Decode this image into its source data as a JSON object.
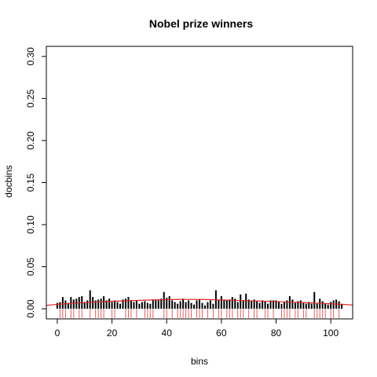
{
  "chart_data": {
    "type": "bar",
    "title": "Nobel prize winners",
    "xlabel": "bins",
    "ylabel": "docbins",
    "xlim": [
      -4,
      108
    ],
    "ylim": [
      -0.012,
      0.312
    ],
    "grid": false,
    "x_ticks": [
      0,
      20,
      40,
      60,
      80,
      100
    ],
    "x_tick_labels": [
      "0",
      "20",
      "40",
      "60",
      "80",
      "100"
    ],
    "y_ticks": [
      0.0,
      0.05,
      0.1,
      0.15,
      0.2,
      0.25,
      0.3
    ],
    "y_tick_labels": [
      "0.00",
      "0.05",
      "0.10",
      "0.15",
      "0.20",
      "0.25",
      "0.30"
    ],
    "bar_color": "#000000",
    "x": [
      0,
      1,
      2,
      3,
      4,
      5,
      6,
      7,
      8,
      9,
      10,
      11,
      12,
      13,
      14,
      15,
      16,
      17,
      18,
      19,
      20,
      21,
      22,
      23,
      24,
      25,
      26,
      27,
      28,
      29,
      30,
      31,
      32,
      33,
      34,
      35,
      36,
      37,
      38,
      39,
      40,
      41,
      42,
      43,
      44,
      45,
      46,
      47,
      48,
      49,
      50,
      51,
      52,
      53,
      54,
      55,
      56,
      57,
      58,
      59,
      60,
      61,
      62,
      63,
      64,
      65,
      66,
      67,
      68,
      69,
      70,
      71,
      72,
      73,
      74,
      75,
      76,
      77,
      78,
      79,
      80,
      81,
      82,
      83,
      84,
      85,
      86,
      87,
      88,
      89,
      90,
      91,
      92,
      93,
      94,
      95,
      96,
      97,
      98,
      99,
      100,
      101,
      102,
      103,
      104
    ],
    "values": [
      0.007,
      0.008,
      0.014,
      0.01,
      0.007,
      0.014,
      0.011,
      0.012,
      0.014,
      0.015,
      0.008,
      0.01,
      0.022,
      0.014,
      0.01,
      0.011,
      0.012,
      0.015,
      0.01,
      0.012,
      0.008,
      0.01,
      0.008,
      0.006,
      0.011,
      0.012,
      0.014,
      0.01,
      0.008,
      0.01,
      0.006,
      0.008,
      0.009,
      0.007,
      0.006,
      0.011,
      0.01,
      0.01,
      0.012,
      0.02,
      0.013,
      0.015,
      0.01,
      0.008,
      0.006,
      0.009,
      0.012,
      0.008,
      0.01,
      0.007,
      0.005,
      0.01,
      0.011,
      0.007,
      0.004,
      0.008,
      0.01,
      0.006,
      0.022,
      0.01,
      0.015,
      0.011,
      0.01,
      0.011,
      0.014,
      0.012,
      0.008,
      0.017,
      0.01,
      0.018,
      0.011,
      0.01,
      0.011,
      0.009,
      0.007,
      0.01,
      0.009,
      0.006,
      0.01,
      0.01,
      0.01,
      0.009,
      0.006,
      0.008,
      0.01,
      0.015,
      0.011,
      0.007,
      0.009,
      0.01,
      0.007,
      0.006,
      0.008,
      0.006,
      0.02,
      0.006,
      0.012,
      0.009,
      0.006,
      0.005,
      0.008,
      0.01,
      0.011,
      0.009,
      0.006
    ],
    "density_curve": {
      "color": "#d62728",
      "x": [
        -4,
        0,
        10,
        20,
        30,
        40,
        48,
        55,
        60,
        70,
        80,
        90,
        100,
        108
      ],
      "y": [
        0.004,
        0.0055,
        0.0075,
        0.009,
        0.01,
        0.011,
        0.0112,
        0.011,
        0.0105,
        0.0095,
        0.0085,
        0.0075,
        0.006,
        0.0045
      ]
    },
    "rug": {
      "color": "#e06060",
      "x": [
        1,
        2,
        3,
        5,
        6,
        8,
        9,
        12,
        14,
        15,
        16,
        17,
        20,
        21,
        25,
        26,
        27,
        29,
        32,
        33,
        34,
        35,
        39,
        40,
        42,
        44,
        45,
        46,
        47,
        48,
        49,
        51,
        52,
        53,
        55,
        57,
        59,
        60,
        62,
        63,
        64,
        66,
        67,
        68,
        70,
        72,
        73,
        76,
        77,
        79,
        82,
        83,
        84,
        85,
        87,
        88,
        90,
        91,
        94,
        95,
        96,
        97,
        98,
        100,
        101,
        103
      ]
    }
  }
}
